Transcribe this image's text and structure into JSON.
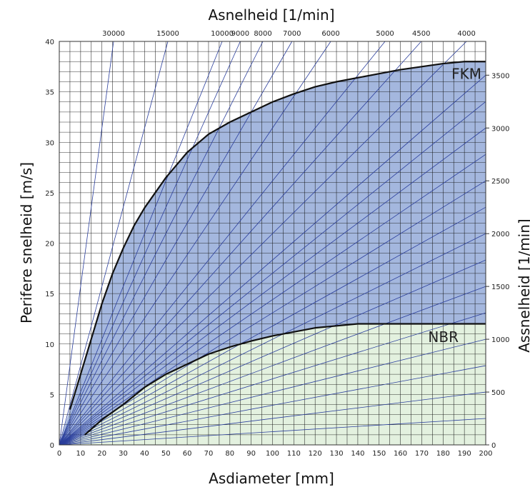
{
  "chart_data": {
    "type": "line",
    "title": "",
    "xlabel": "Asdiameter [mm]",
    "ylabel": "Perifere snelheid [m/s]",
    "top_label": "Asnelheid [1/min]",
    "right_label": "Assnelheid [1/min]",
    "xlim": [
      0,
      200
    ],
    "ylim": [
      0,
      40
    ],
    "xticks": [
      0,
      10,
      20,
      30,
      40,
      50,
      60,
      70,
      80,
      90,
      100,
      110,
      120,
      130,
      140,
      150,
      160,
      170,
      180,
      190,
      200
    ],
    "yticks": [
      0,
      5,
      10,
      15,
      20,
      25,
      30,
      35,
      40
    ],
    "xtick_labels": [
      "0",
      "10",
      "20",
      "30",
      "40",
      "50",
      "60",
      "70",
      "80",
      "90",
      "100",
      "110",
      "120",
      "130",
      "140",
      "150",
      "160",
      "170",
      "180",
      "190",
      "200"
    ],
    "ytick_labels": [
      "0",
      "5",
      "10",
      "15",
      "20",
      "25",
      "30",
      "35",
      "40"
    ],
    "top_ticks": [
      {
        "rpm": 30000,
        "label": "30000"
      },
      {
        "rpm": 15000,
        "label": "15000"
      },
      {
        "rpm": 10000,
        "label": "10000"
      },
      {
        "rpm": 9000,
        "label": "9000"
      },
      {
        "rpm": 8000,
        "label": "8000"
      },
      {
        "rpm": 7000,
        "label": "7000"
      },
      {
        "rpm": 6000,
        "label": "6000"
      },
      {
        "rpm": 5000,
        "label": "5000"
      },
      {
        "rpm": 4500,
        "label": "4500"
      },
      {
        "rpm": 4000,
        "label": "4000"
      }
    ],
    "right_ticks": [
      {
        "rpm": 0,
        "label": "0"
      },
      {
        "rpm": 500,
        "label": "500"
      },
      {
        "rpm": 1000,
        "label": "1000"
      },
      {
        "rpm": 1500,
        "label": "1500"
      },
      {
        "rpm": 2000,
        "label": "2000"
      },
      {
        "rpm": 2500,
        "label": "2500"
      },
      {
        "rpm": 3000,
        "label": "3000"
      },
      {
        "rpm": 3500,
        "label": "3500"
      }
    ],
    "speed_lines_rpm": [
      30000,
      15000,
      10000,
      9000,
      8000,
      7000,
      6000,
      5000,
      4500,
      4000,
      3500,
      3250,
      3000,
      2750,
      2500,
      2250,
      2000,
      1750,
      1500,
      1250,
      1000,
      750,
      500,
      250
    ],
    "series": [
      {
        "name": "FKM",
        "color": "#a4b7de",
        "x": [
          0,
          5,
          10,
          15,
          20,
          25,
          30,
          35,
          40,
          50,
          60,
          70,
          80,
          90,
          100,
          110,
          120,
          130,
          140,
          150,
          160,
          170,
          180,
          190,
          200
        ],
        "y": [
          0,
          3.5,
          7,
          10.5,
          14,
          17,
          19.5,
          21.7,
          23.5,
          26.5,
          29,
          30.8,
          32,
          33,
          34,
          34.8,
          35.5,
          36,
          36.4,
          36.8,
          37.2,
          37.5,
          37.8,
          38,
          38
        ]
      },
      {
        "name": "NBR",
        "color": "#e3f1df",
        "x": [
          0,
          12,
          20,
          30,
          40,
          50,
          60,
          70,
          80,
          90,
          100,
          110,
          120,
          130,
          140,
          150,
          160,
          170,
          180,
          190,
          200
        ],
        "y": [
          0,
          1,
          2.5,
          4,
          5.7,
          7,
          8,
          9,
          9.7,
          10.3,
          10.8,
          11.2,
          11.6,
          11.8,
          12,
          12,
          12,
          12,
          12,
          12,
          12
        ]
      }
    ],
    "grid": true
  }
}
